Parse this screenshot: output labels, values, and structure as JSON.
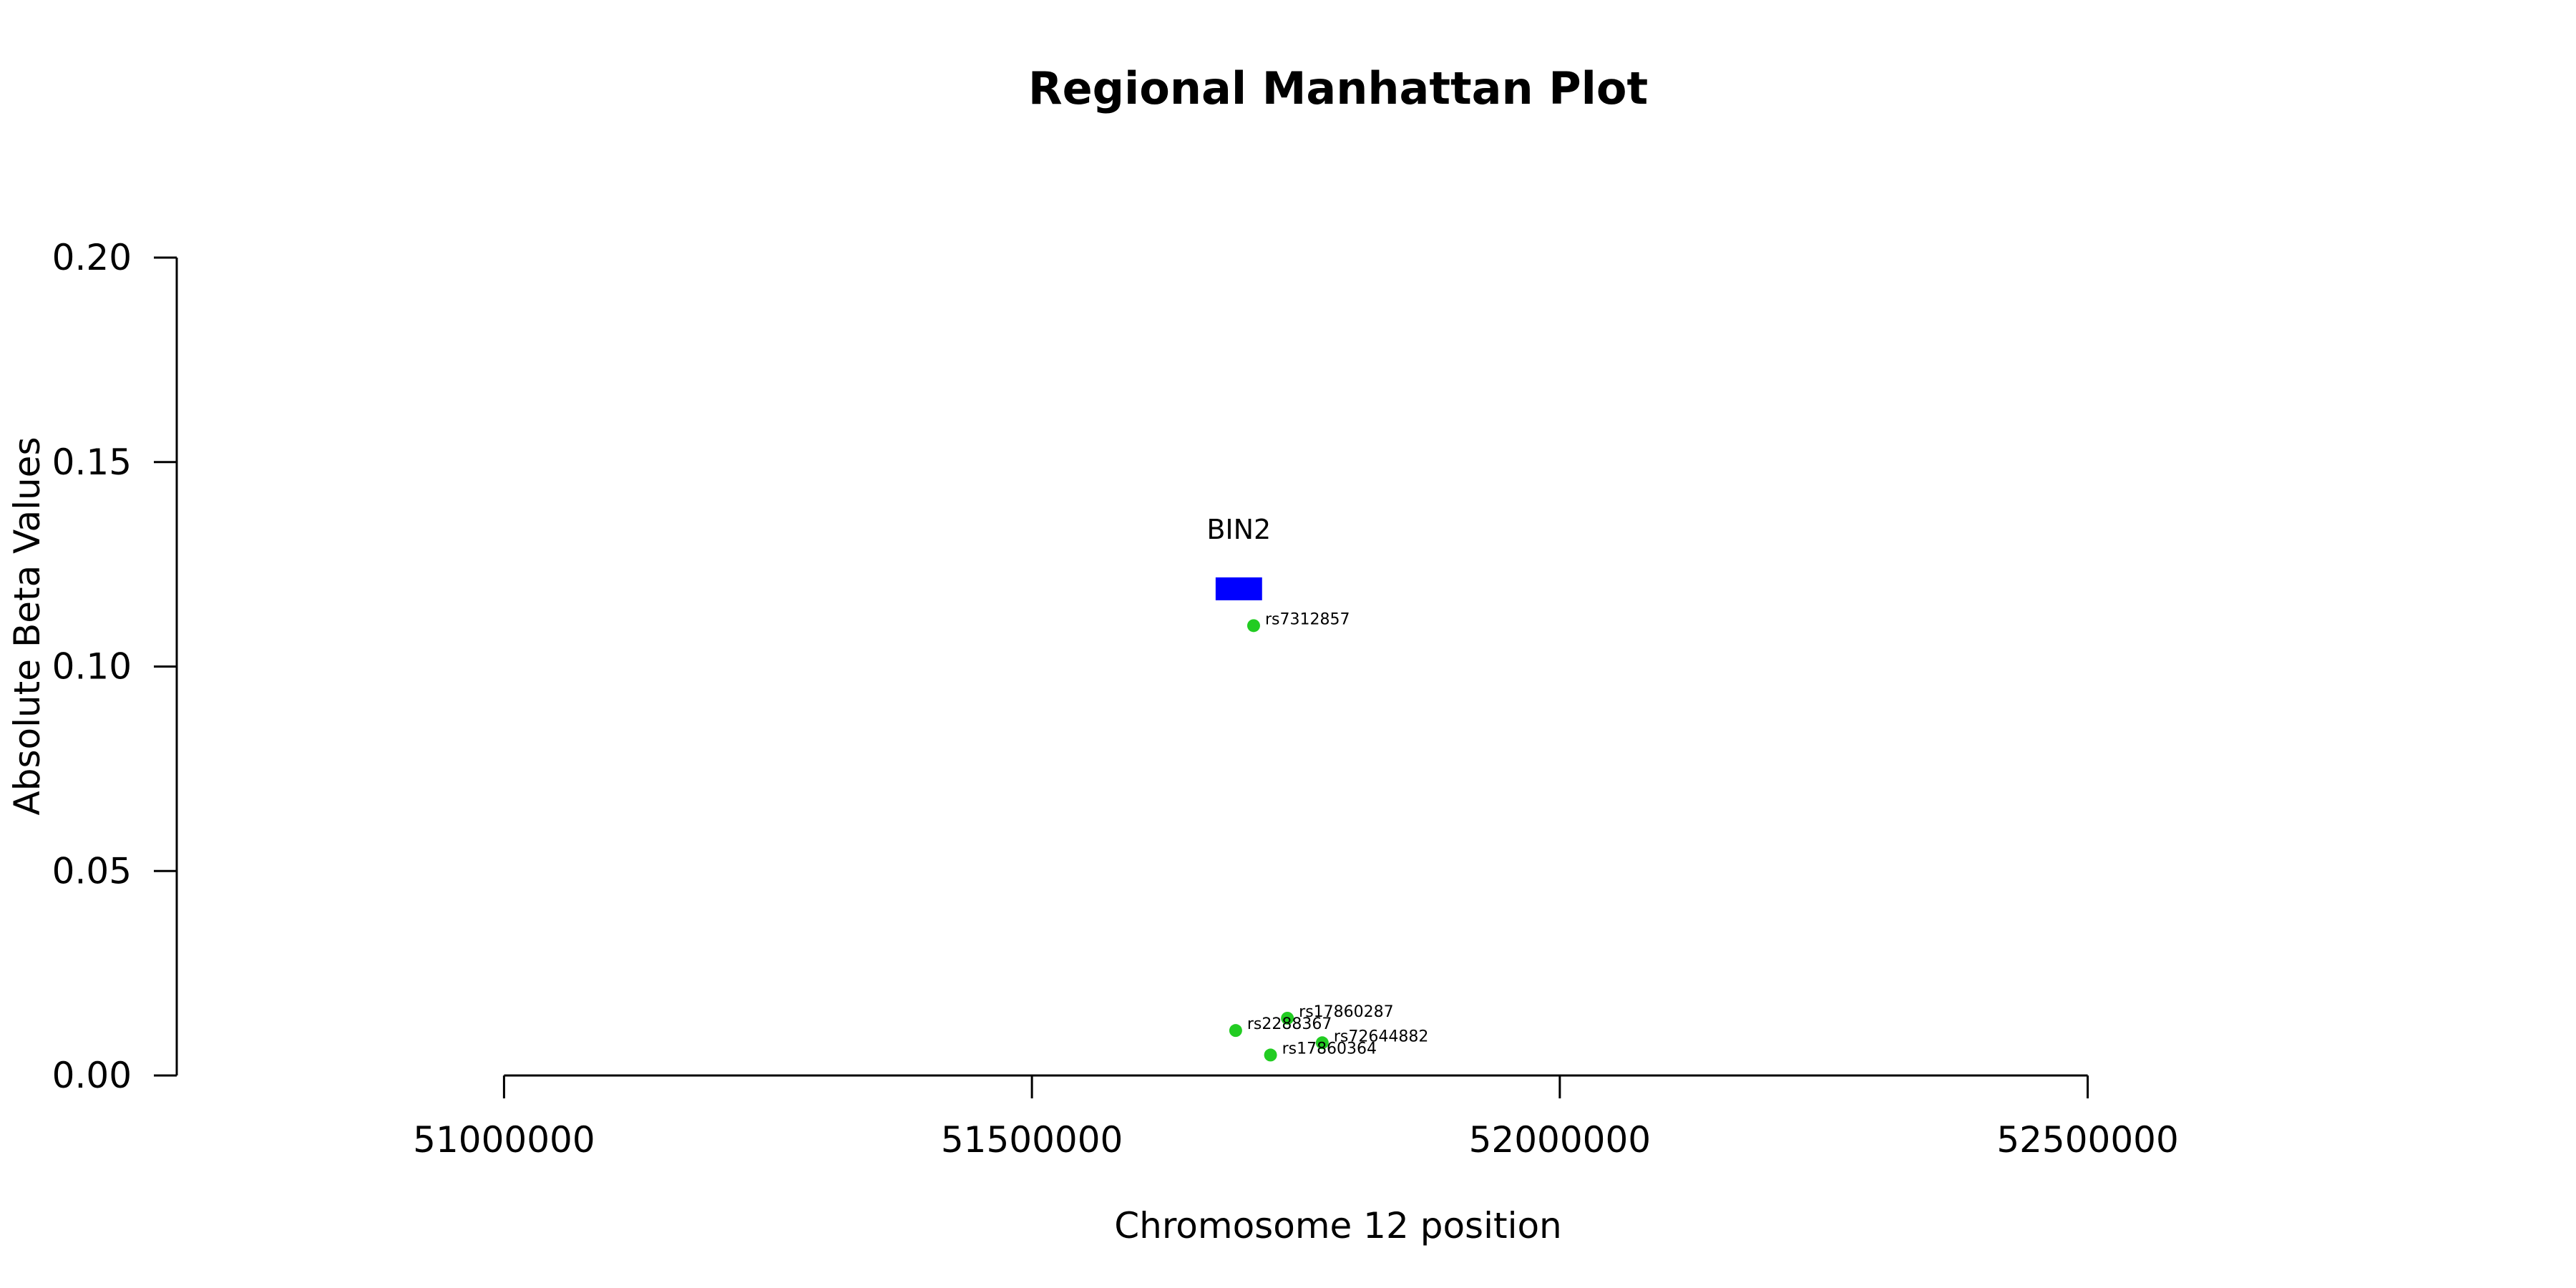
{
  "chart_data": {
    "type": "scatter",
    "title": "Regional Manhattan Plot",
    "xlabel": "Chromosome 12 position",
    "ylabel": "Absolute Beta Values",
    "xlim": [
      50690000,
      52890000
    ],
    "ylim": [
      0,
      0.2
    ],
    "x_axis_range": [
      51000000,
      52500000
    ],
    "x_ticks": [
      51000000,
      51500000,
      52000000,
      52500000
    ],
    "x_tick_labels": [
      "51000000",
      "51500000",
      "52000000",
      "52500000"
    ],
    "y_ticks": [
      0,
      0.05,
      0.1,
      0.15,
      0.2
    ],
    "y_tick_labels": [
      "0.00",
      "0.05",
      "0.10",
      "0.15",
      "0.20"
    ],
    "grid": false,
    "series": [
      {
        "point_color": "#22cc22",
        "points": [
          {
            "label": "rs7312857",
            "x": 51710000,
            "y": 0.11
          },
          {
            "label": "rs17860287",
            "x": 51742000,
            "y": 0.014
          },
          {
            "label": "rs2288367",
            "x": 51693000,
            "y": 0.011
          },
          {
            "label": "rs72644882",
            "x": 51775000,
            "y": 0.008
          },
          {
            "label": "rs17860364",
            "x": 51726000,
            "y": 0.005
          }
        ]
      }
    ],
    "genes": [
      {
        "name": "BIN2",
        "start": 51674000,
        "end": 51718000,
        "y": 0.119,
        "color": "#0000ff"
      }
    ]
  }
}
